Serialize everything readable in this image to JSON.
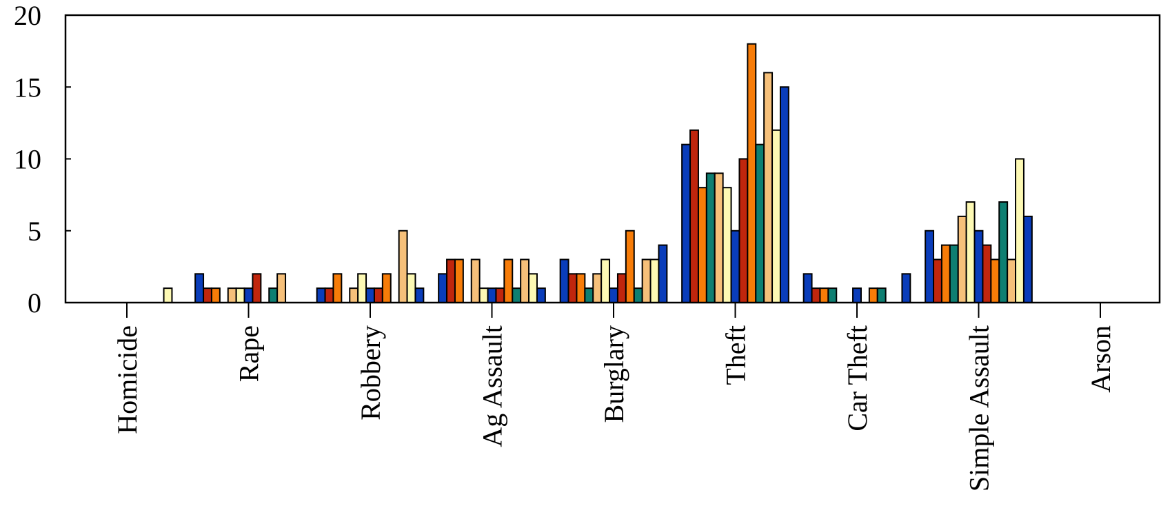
{
  "chart_data": {
    "type": "bar",
    "title": "",
    "xlabel": "",
    "ylabel": "",
    "ylim": [
      0,
      20
    ],
    "yticks": [
      0,
      5,
      10,
      15,
      20
    ],
    "grid": false,
    "legend": "none",
    "categories": [
      "Homicide",
      "Rape",
      "Robbery",
      "Ag Assault",
      "Burglary",
      "Theft",
      "Car Theft",
      "Simple Assault",
      "Arson"
    ],
    "colors": [
      "#0a3dba",
      "#c0260d",
      "#f77c08",
      "#0e7f72",
      "#f6c07a",
      "#fdf9b4"
    ],
    "series": [
      {
        "values": [
          0,
          2,
          1,
          2,
          3,
          11,
          2,
          5,
          0
        ]
      },
      {
        "values": [
          0,
          1,
          1,
          3,
          2,
          12,
          1,
          3,
          0
        ]
      },
      {
        "values": [
          0,
          1,
          2,
          3,
          2,
          8,
          1,
          4,
          0
        ]
      },
      {
        "values": [
          0,
          0,
          0,
          0,
          1,
          9,
          1,
          4,
          0
        ]
      },
      {
        "values": [
          0,
          1,
          1,
          3,
          2,
          9,
          0,
          6,
          0
        ]
      },
      {
        "values": [
          0,
          1,
          2,
          1,
          3,
          8,
          0,
          7,
          0
        ]
      },
      {
        "values": [
          0,
          1,
          1,
          1,
          1,
          5,
          1,
          5,
          0
        ]
      },
      {
        "values": [
          0,
          2,
          1,
          1,
          2,
          10,
          0,
          4,
          0
        ]
      },
      {
        "values": [
          0,
          0,
          2,
          3,
          5,
          18,
          1,
          3,
          0
        ]
      },
      {
        "values": [
          0,
          1,
          0,
          1,
          1,
          11,
          1,
          7,
          0
        ]
      },
      {
        "values": [
          0,
          2,
          5,
          3,
          3,
          16,
          0,
          3,
          0
        ]
      },
      {
        "values": [
          1,
          0,
          2,
          2,
          3,
          12,
          0,
          10,
          0
        ]
      },
      {
        "values": [
          0,
          0,
          1,
          1,
          4,
          15,
          2,
          6,
          0
        ]
      }
    ]
  }
}
